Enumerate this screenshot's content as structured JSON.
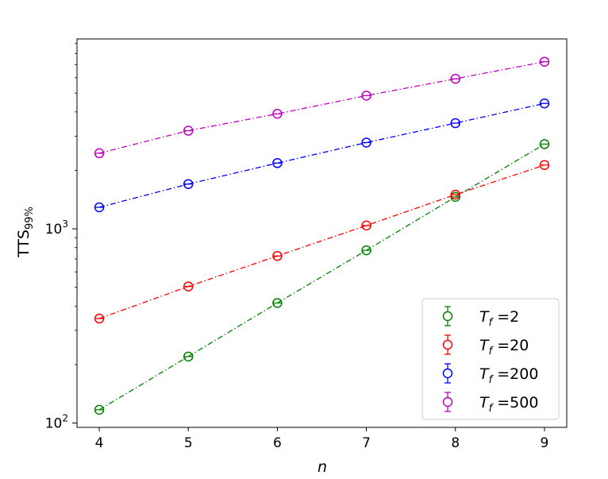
{
  "chart_data": {
    "type": "line",
    "title": "",
    "xlabel": "n",
    "ylabel_main": "TTS",
    "ylabel_sub": "99%",
    "yscale": "log",
    "xlim": [
      3.75,
      9.25
    ],
    "ylim": [
      95,
      9500
    ],
    "x_ticks": [
      4,
      5,
      6,
      7,
      8,
      9
    ],
    "x_tick_labels": [
      "4",
      "5",
      "6",
      "7",
      "8",
      "9"
    ],
    "y_ticks": [
      {
        "value": 100,
        "base": "10",
        "exp": "2"
      },
      {
        "value": 1000,
        "base": "10",
        "exp": "3"
      }
    ],
    "x": [
      4,
      5,
      6,
      7,
      8,
      9
    ],
    "series": [
      {
        "name_sym": "T",
        "name_sub": "f",
        "name_rest": " =2",
        "color": "#008000",
        "values": [
          117,
          220,
          415,
          775,
          1460,
          2730
        ]
      },
      {
        "name_sym": "T",
        "name_sub": "f",
        "name_rest": " =20",
        "color": "#ff0000",
        "values": [
          345,
          505,
          725,
          1040,
          1500,
          2130
        ]
      },
      {
        "name_sym": "T",
        "name_sub": "f",
        "name_rest": " =200",
        "color": "#0000ff",
        "values": [
          1290,
          1700,
          2180,
          2780,
          3500,
          4420
        ]
      },
      {
        "name_sym": "T",
        "name_sub": "f",
        "name_rest": " =500",
        "color": "#bf00bf",
        "values": [
          2450,
          3200,
          3910,
          4850,
          5920,
          7250
        ]
      }
    ],
    "legend_position": "bottom-right",
    "marker": "open-circle-with-errorbar",
    "line_style": "dash-dot"
  }
}
